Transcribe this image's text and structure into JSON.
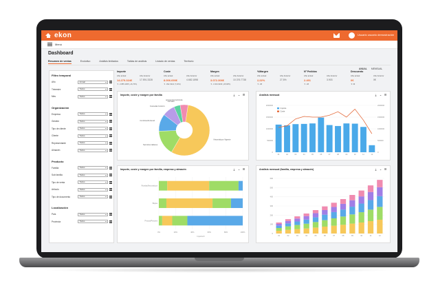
{
  "brand": {
    "logo": "ekon",
    "accent": "#ee6a2f"
  },
  "topbar": {
    "user_name": "Usuario usuario demostración"
  },
  "menu": {
    "label": "Menú"
  },
  "page": {
    "title": "Dashboard"
  },
  "tabs": [
    {
      "label": "Resumen de ventas",
      "active": true
    },
    {
      "label": "Evolutivo"
    },
    {
      "label": "Análisis limitados"
    },
    {
      "label": "Tablas de análisis"
    },
    {
      "label": "Listado de ventas"
    },
    {
      "label": "Territorio"
    }
  ],
  "toggles": {
    "left": "ANUAL",
    "right": "MENSUAL"
  },
  "filters": {
    "sections": [
      {
        "title": "Filtro temporal",
        "rows": [
          {
            "label": "Año",
            "value": "Actual"
          },
          {
            "label": "Trimestre",
            "value": "Todos"
          },
          {
            "label": "Mes",
            "value": "Todos"
          }
        ]
      },
      {
        "title": "Organización",
        "rows": [
          {
            "label": "Empresa",
            "value": "Todos"
          },
          {
            "label": "Gestión",
            "value": "Todos"
          },
          {
            "label": "Tipo de cliente",
            "value": "Todos"
          },
          {
            "label": "Cliente",
            "value": "Todos"
          },
          {
            "label": "Representante",
            "value": "Todos"
          },
          {
            "label": "Almacén",
            "value": "Todos"
          }
        ]
      },
      {
        "title": "Producto",
        "rows": [
          {
            "label": "Familia",
            "value": "Todos"
          },
          {
            "label": "Sub familia",
            "value": "Todos"
          },
          {
            "label": "Tipo de venta",
            "value": "Todos"
          },
          {
            "label": "Artículo",
            "value": "Todos"
          },
          {
            "label": "Tipo de documento",
            "value": "Todos"
          }
        ]
      },
      {
        "title": "Localización",
        "rows": [
          {
            "label": "País",
            "value": "Todos"
          },
          {
            "label": "Provincia",
            "value": "Todos"
          }
        ]
      }
    ]
  },
  "kpis": [
    {
      "title": "Importe",
      "lab1": "Año actual",
      "lab2": "Año Anterior",
      "val1": "14.279.324€",
      "val2": "17.591.3328",
      "foot": "-3.885.1088 (-16,76%)"
    },
    {
      "title": "Coste",
      "lab1": "Año actual",
      "lab2": "Año Anterior",
      "val1": "8.006.690€",
      "val2": "4.682.1898",
      "foot": "-992.4944 (7,33%)"
    },
    {
      "title": "Margen",
      "lab1": "Año actual",
      "lab2": "Año Anterior",
      "val1": "3.072.306€",
      "val2": "10.376.7738",
      "foot": "-3.304.9296 (-25,68%)"
    },
    {
      "title": "%Margen",
      "lab1": "Año actual",
      "lab2": "Año Anterior",
      "val1": "2,02%",
      "val2": "27,5%",
      "foot": "-98"
    },
    {
      "title": "Nº Pedidos",
      "lab1": "Año actual",
      "lab2": "Año Anterior",
      "val1": "2.491",
      "val2": "3.903",
      "foot": "-98"
    },
    {
      "title": "Descuento",
      "lab1": "Año actual",
      "lab2": "Año Anterior",
      "val1": "0€",
      "val2": "0€",
      "foot": "0€"
    }
  ],
  "cards": {
    "pie": {
      "title": "Importe, coste y margen por familia"
    },
    "monthly": {
      "title": "Análisis mensual"
    },
    "stacked_h": {
      "title": "Importe, coste y margen por familia, empresa y almacén"
    },
    "stacked_v": {
      "title": "Análisis mensual (familia, empresa y almacén)"
    }
  },
  "icons": {
    "download": "download-icon",
    "chevron": "chevron-down-icon",
    "menu": "menu-icon"
  },
  "chart_data": [
    {
      "type": "pie",
      "title": "Importe, coste y margen por familia",
      "slices": [
        {
          "label": "Neumáticos Vigente",
          "value": 56,
          "color": "#f7c85a"
        },
        {
          "label": "Servicios talleres",
          "value": 16,
          "color": "#9fdc66"
        },
        {
          "label": "Cumbresfrontend",
          "value": 11,
          "color": "#59a9e8"
        },
        {
          "label": "Consolas función",
          "value": 8,
          "color": "#b79ce8"
        },
        {
          "label": "Cerrado",
          "value": 4,
          "color": "#5bd1a0"
        },
        {
          "label": "accesorios/vehículo",
          "value": 5,
          "color": "#f08bb0"
        }
      ]
    },
    {
      "type": "bar",
      "title": "Análisis mensual",
      "legend": [
        "Importe",
        "Coste"
      ],
      "categories": [
        "01",
        "02",
        "03",
        "04",
        "05",
        "06",
        "07",
        "08",
        "09",
        "10",
        "11",
        "12"
      ],
      "series": [
        {
          "name": "Importe",
          "type": "bar",
          "color": "#4aa9e9",
          "values": [
            1180000,
            1150000,
            1200000,
            1210000,
            1230000,
            1480000,
            1160000,
            1120000,
            1230000,
            1220000,
            1080000,
            300000
          ]
        },
        {
          "name": "Coste",
          "type": "line",
          "color": "#e46a3a",
          "values": [
            1060000,
            1130000,
            1420000,
            1530000,
            1500000,
            1500000,
            1580000,
            1730000,
            1500000,
            1840000,
            1370000,
            790000
          ]
        }
      ],
      "ylim": [
        0,
        2000000
      ],
      "yticks": [
        "0",
        "500000",
        "1000000",
        "1500000",
        "2000000"
      ]
    },
    {
      "type": "bar",
      "orientation": "horizontal",
      "title": "Importe, coste y margen por familia, empresa y almacén",
      "categories": [
        "Ruedas/Neumáticos",
        "Bujías",
        "Pintura/Pintores"
      ],
      "series": [
        {
          "name": "s1",
          "color": "#9fdc66",
          "values": [
            10,
            9,
            4
          ]
        },
        {
          "name": "s2",
          "color": "#f7c85a",
          "values": [
            50,
            55,
            12
          ]
        },
        {
          "name": "s3",
          "color": "#9fdc66",
          "values": [
            35,
            22,
            18
          ]
        },
        {
          "name": "s4",
          "color": "#59a9e8",
          "values": [
            5,
            14,
            66
          ]
        }
      ],
      "xlim": [
        0,
        100
      ],
      "xticks": [
        "0%",
        "20%",
        "40%",
        "60%",
        "80%",
        "100%"
      ],
      "xlabel": "Importe €"
    },
    {
      "type": "bar",
      "stacked": true,
      "title": "Análisis mensual (familia, empresa y almacén)",
      "categories": [
        "01",
        "02",
        "03",
        "04",
        "05",
        "06",
        "07",
        "08",
        "09",
        "10",
        "11",
        "12"
      ],
      "series": [
        {
          "name": "a",
          "color": "#f7c85a",
          "values": [
            30,
            40,
            48,
            55,
            65,
            75,
            85,
            95,
            108,
            120,
            135,
            150
          ]
        },
        {
          "name": "b",
          "color": "#9fdc66",
          "values": [
            30,
            38,
            45,
            52,
            60,
            70,
            80,
            90,
            100,
            112,
            125,
            140
          ]
        },
        {
          "name": "c",
          "color": "#59a9e8",
          "values": [
            25,
            32,
            38,
            45,
            52,
            60,
            68,
            76,
            84,
            94,
            104,
            116
          ]
        },
        {
          "name": "d",
          "color": "#a07ee6",
          "values": [
            20,
            26,
            32,
            38,
            44,
            50,
            56,
            62,
            70,
            78,
            88,
            98
          ]
        },
        {
          "name": "e",
          "color": "#f08bb0",
          "values": [
            15,
            20,
            24,
            28,
            34,
            40,
            46,
            52,
            58,
            64,
            72,
            80
          ]
        }
      ],
      "ylim": [
        0,
        600
      ],
      "yticks": [
        "0",
        "100",
        "200",
        "300",
        "400",
        "500",
        "600"
      ]
    }
  ]
}
